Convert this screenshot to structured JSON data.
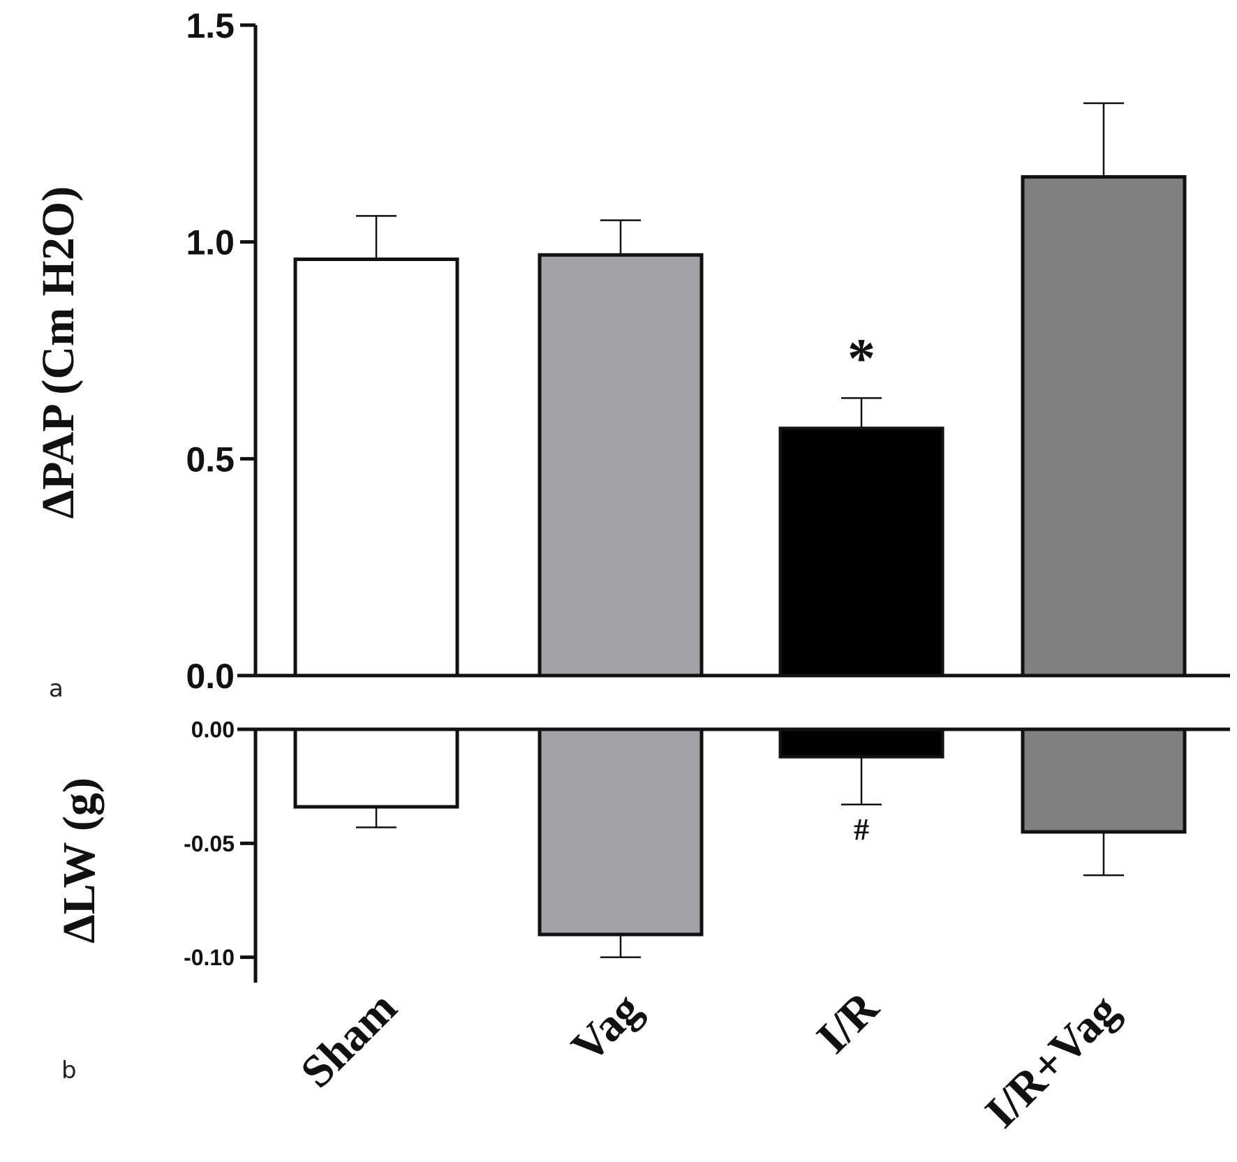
{
  "chart_data": [
    {
      "panel_label": "a",
      "type": "bar",
      "ylabel": "ΔPAP (Cm H2O)",
      "ylim": [
        0,
        1.5
      ],
      "yticks": [
        "0.0",
        "0.5",
        "1.0",
        "1.5"
      ],
      "categories": [
        "Sham",
        "Vag",
        "I/R",
        "I/R+Vag"
      ],
      "values": [
        0.96,
        0.97,
        0.57,
        1.15
      ],
      "errors": [
        0.1,
        0.08,
        0.07,
        0.17
      ],
      "colors": [
        "#ffffff",
        "#a3a2a7",
        "#000000",
        "#808080"
      ],
      "annotations": [
        {
          "category": "I/R",
          "text": "*"
        }
      ]
    },
    {
      "panel_label": "b",
      "type": "bar",
      "ylabel": "ΔLW (g)",
      "ylim": [
        -0.105,
        0
      ],
      "yticks": [
        "0.00",
        "-0.05",
        "-0.10"
      ],
      "categories": [
        "Sham",
        "Vag",
        "I/R",
        "I/R+Vag"
      ],
      "values": [
        -0.034,
        -0.09,
        -0.012,
        -0.045
      ],
      "errors": [
        0.009,
        0.01,
        0.021,
        0.019
      ],
      "colors": [
        "#ffffff",
        "#a3a2a7",
        "#000000",
        "#808080"
      ],
      "annotations": [
        {
          "category": "I/R",
          "text": "#"
        }
      ]
    }
  ]
}
